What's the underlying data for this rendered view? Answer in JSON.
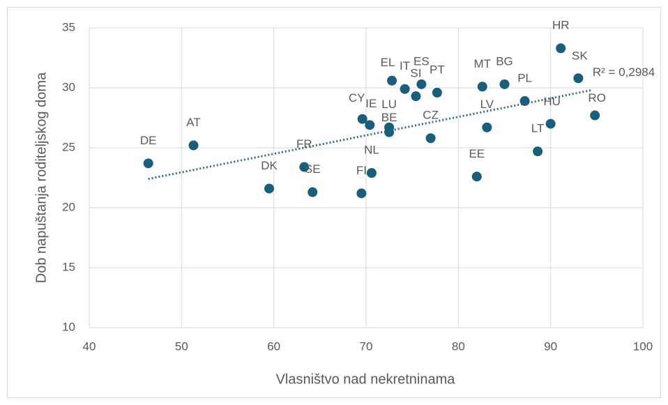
{
  "chart_data": {
    "type": "scatter",
    "xlabel": "Vlasništvo nad nekretninama",
    "ylabel": "Dob napuštanja roditeljskog doma",
    "labels": [
      "DE",
      "AT",
      "DK",
      "FR",
      "SE",
      "FI",
      "NL",
      "CY",
      "IE",
      "LU",
      "BE",
      "EL",
      "IT",
      "SI",
      "ES",
      "PT",
      "CZ",
      "MT",
      "BG",
      "EE",
      "LV",
      "PL",
      "HU",
      "LT",
      "HR",
      "SK",
      "RO"
    ],
    "x": [
      46.4,
      51.3,
      59.5,
      63.3,
      64.2,
      69.5,
      70.6,
      69.6,
      70.4,
      72.5,
      72.5,
      72.8,
      74.2,
      75.4,
      76.0,
      77.7,
      77.0,
      82.6,
      85.0,
      82.0,
      83.1,
      87.2,
      90.0,
      88.6,
      91.1,
      93.0,
      94.8
    ],
    "values": [
      23.7,
      25.2,
      21.6,
      23.4,
      21.3,
      21.2,
      22.9,
      27.4,
      26.9,
      26.7,
      26.3,
      30.6,
      29.9,
      29.3,
      30.3,
      29.6,
      25.8,
      30.1,
      30.3,
      22.6,
      26.7,
      28.9,
      27.0,
      24.7,
      33.3,
      30.8,
      27.7
    ],
    "color": "#1b5e7b",
    "trendline": {
      "x": [
        46.4,
        94.4
      ],
      "values": [
        22.4,
        29.8
      ],
      "color": "#2a6f7f",
      "label": "R² = 0,2984"
    },
    "xlim": [
      40,
      100
    ],
    "xticks": [
      40,
      50,
      60,
      70,
      80,
      90,
      100
    ],
    "ylim": [
      10,
      35
    ],
    "yticks": [
      10,
      15,
      20,
      25,
      30,
      35
    ],
    "grid": true
  }
}
